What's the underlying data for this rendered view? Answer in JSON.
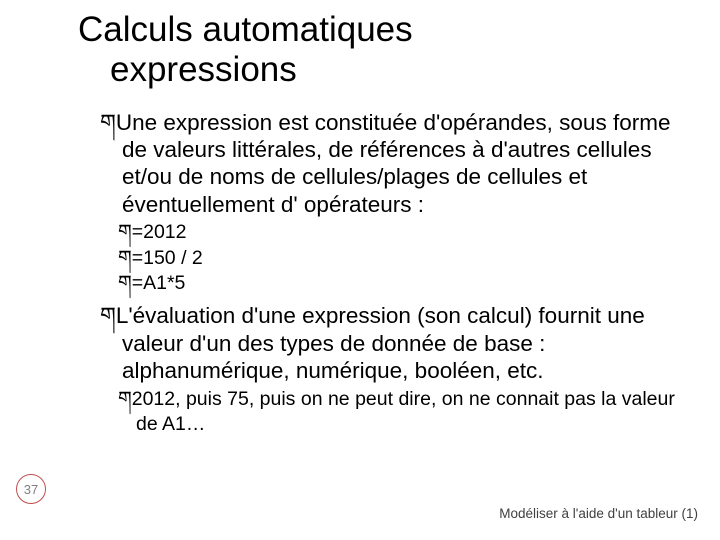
{
  "colors": {
    "background": "#ffffff",
    "text": "#000000",
    "circle_border": "#c0504d",
    "page_num_text": "#808080",
    "footer_text": "#404040"
  },
  "typography": {
    "title_fontsize": 35,
    "l1_fontsize": 22.5,
    "l2_fontsize": 19.5,
    "pagenum_fontsize": 13,
    "footer_fontsize": 13.5,
    "bullet_glyph": "ག"
  },
  "title": {
    "line1": "Calculs automatiques",
    "line2": "expressions"
  },
  "body": {
    "p1": "Une expression est constituée d'opérandes, sous forme de valeurs littérales, de références à d'autres cellules et/ou de noms de cellules/plages de cellules et éventuellement d' opérateurs :",
    "p1_sub": [
      "=2012",
      "=150 / 2",
      "=A1*5"
    ],
    "p2": "L'évaluation d'une expression (son calcul) fournit une valeur d'un des types de donnée de base : alphanumérique, numérique, booléen, etc.",
    "p2_sub": [
      "2012, puis 75, puis on ne peut dire, on ne connait pas la valeur de A1…"
    ]
  },
  "page_number": "37",
  "footer": "Modéliser à l'aide d'un tableur (1)"
}
